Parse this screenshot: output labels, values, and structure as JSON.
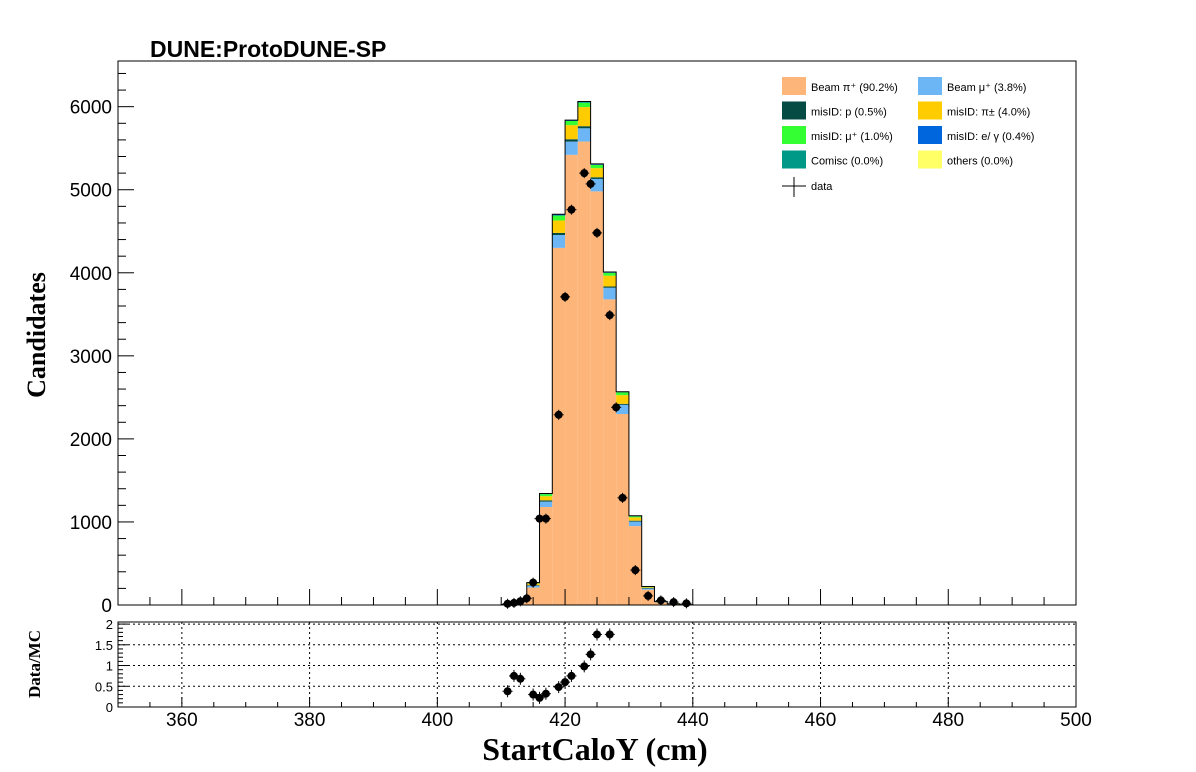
{
  "title": "DUNE:ProtoDUNE-SP",
  "colors": {
    "beam_pi": "#fdb57a",
    "beam_mu": "#6db6f5",
    "misid_p": "#064a44",
    "misid_pi": "#ffcc00",
    "misid_mu": "#33ff33",
    "misid_eg": "#0066dd",
    "comisc": "#009988",
    "others": "#ffff66",
    "data": "#000000"
  },
  "chart_data": [
    {
      "type": "bar",
      "stacked": true,
      "xlabel": "StartCaloY (cm)",
      "ylabel": "Candidates",
      "xlim": [
        350,
        500
      ],
      "ylim": [
        0,
        6550
      ],
      "x_ticks": [
        "360",
        "380",
        "400",
        "420",
        "440",
        "460",
        "480",
        "500"
      ],
      "y_ticks": [
        "0",
        "1000",
        "2000",
        "3000",
        "4000",
        "5000",
        "6000"
      ],
      "bin_edges": [
        410,
        412,
        414,
        416,
        418,
        420,
        422,
        424,
        426,
        428,
        430,
        432,
        434,
        436,
        438,
        440
      ],
      "series": [
        {
          "name": "Beam  π⁺ (90.2%)",
          "key": "beam_pi",
          "values": [
            5,
            30,
            210,
            1180,
            4300,
            5420,
            5580,
            4980,
            3680,
            2300,
            950,
            185,
            35,
            12,
            5
          ]
        },
        {
          "name": "Beam  μ⁺ (3.8%)",
          "key": "beam_mu",
          "values": [
            1,
            6,
            25,
            65,
            155,
            160,
            160,
            150,
            140,
            110,
            55,
            15,
            3,
            1,
            0
          ]
        },
        {
          "name": "misID: p (0.5%)",
          "key": "misid_p",
          "values": [
            0,
            2,
            5,
            15,
            25,
            28,
            25,
            20,
            15,
            12,
            10,
            5,
            2,
            1,
            0
          ]
        },
        {
          "name": "misID:  π± (4.0%)",
          "key": "misid_pi",
          "values": [
            0,
            5,
            20,
            50,
            150,
            170,
            230,
            110,
            130,
            105,
            40,
            10,
            2,
            1,
            0
          ]
        },
        {
          "name": "misID:  μ⁺ (1.0%)",
          "key": "misid_mu",
          "values": [
            0,
            2,
            6,
            25,
            60,
            50,
            55,
            40,
            35,
            35,
            15,
            5,
            1,
            0,
            0
          ]
        },
        {
          "name": "misID: e/ γ (0.4%)",
          "key": "misid_eg",
          "values": [
            0,
            1,
            3,
            8,
            15,
            10,
            12,
            12,
            10,
            6,
            5,
            2,
            1,
            0,
            0
          ]
        },
        {
          "name": "Comisc (0.0%)",
          "key": "comisc",
          "values": [
            0,
            0,
            0,
            0,
            0,
            0,
            0,
            0,
            0,
            0,
            0,
            0,
            0,
            0,
            0
          ]
        },
        {
          "name": "others (0.0%)",
          "key": "others",
          "values": [
            0,
            0,
            0,
            0,
            0,
            0,
            0,
            0,
            0,
            0,
            0,
            0,
            0,
            0,
            0
          ]
        }
      ],
      "data": {
        "name": "data",
        "x": [
          411,
          412,
          413,
          414,
          415,
          416,
          417,
          419,
          420,
          421,
          423,
          424,
          425,
          427,
          428,
          429,
          431,
          433,
          435,
          437,
          439
        ],
        "y": [
          15,
          25,
          45,
          80,
          270,
          1040,
          1040,
          2290,
          3710,
          4760,
          5200,
          5070,
          4480,
          3490,
          2380,
          1290,
          420,
          110,
          55,
          35,
          20
        ]
      }
    },
    {
      "type": "scatter",
      "ylabel": "Data/MC",
      "xlim": [
        350,
        500
      ],
      "ylim": [
        0,
        2.05
      ],
      "y_ticks": [
        "0",
        "0.5",
        "1",
        "1.5",
        "2"
      ],
      "grid": true,
      "x": [
        411,
        412,
        413,
        415,
        416,
        417,
        419,
        420,
        421,
        423,
        424,
        425,
        427
      ],
      "y": [
        0.38,
        0.75,
        0.68,
        0.3,
        0.22,
        0.32,
        0.48,
        0.6,
        0.75,
        0.98,
        1.27,
        1.75,
        1.75
      ]
    }
  ]
}
